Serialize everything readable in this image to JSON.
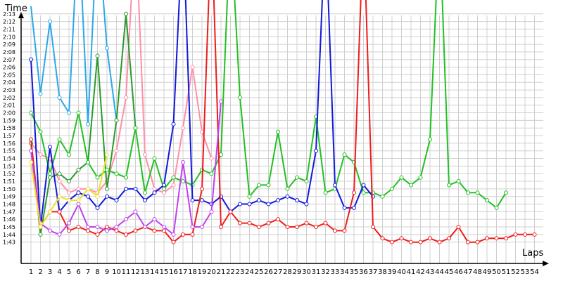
{
  "chart_data": {
    "type": "line",
    "ylabel": "Time",
    "xlabel": "Laps",
    "grid": true,
    "legend": "none",
    "xlim": [
      1,
      54
    ],
    "ylim": [
      102,
      135
    ],
    "y_tick_labels": [
      "1:43",
      "1:44",
      "1:45",
      "1:46",
      "1:47",
      "1:48",
      "1:49",
      "1:50",
      "1:51",
      "1:52",
      "1:53",
      "1:54",
      "1:55",
      "1:56",
      "1:57",
      "1:58",
      "1:59",
      "2:00",
      "2:01",
      "2:02",
      "2:03",
      "2:04",
      "2:05",
      "2:06",
      "2:07",
      "2:08",
      "2:09",
      "2:10",
      "2:11",
      "2:12",
      "2:13"
    ],
    "x_tick_labels": [
      "1",
      "2",
      "3",
      "4",
      "5",
      "6",
      "7",
      "8",
      "9",
      "10",
      "11",
      "12",
      "13",
      "14",
      "15",
      "16",
      "17",
      "18",
      "19",
      "20",
      "21",
      "22",
      "23",
      "24",
      "25",
      "26",
      "27",
      "28",
      "29",
      "30",
      "31",
      "32",
      "33",
      "34",
      "35",
      "36",
      "37",
      "38",
      "39",
      "40",
      "41",
      "42",
      "43",
      "44",
      "45",
      "46",
      "47",
      "48",
      "49",
      "50",
      "51",
      "52",
      "53",
      "54"
    ],
    "series": [
      {
        "color": "#ff8fa8",
        "values": [
          {
            "x": 1,
            "y": 116
          },
          {
            "x": 2,
            "y": 114.5
          },
          {
            "x": 3,
            "y": 114
          },
          {
            "x": 4,
            "y": 111
          },
          {
            "x": 5,
            "y": 109.5
          },
          {
            "x": 6,
            "y": 110
          },
          {
            "x": 7,
            "y": 110
          },
          {
            "x": 8,
            "y": 109.5
          },
          {
            "x": 9,
            "y": 111
          },
          {
            "x": 10,
            "y": 115
          },
          {
            "x": 11,
            "y": 122
          },
          {
            "x": 12,
            "y": 145
          },
          {
            "x": 13,
            "y": 114.5
          },
          {
            "x": 14,
            "y": 110
          },
          {
            "x": 15,
            "y": 109.5
          },
          {
            "x": 16,
            "y": 110.5
          },
          {
            "x": 17,
            "y": 118
          },
          {
            "x": 18,
            "y": 126
          },
          {
            "x": 19,
            "y": 117.5
          },
          {
            "x": 20,
            "y": 114
          }
        ]
      },
      {
        "color": "#2aa8e8",
        "values": [
          {
            "x": 1,
            "y": 134
          },
          {
            "x": 2,
            "y": 122.5
          },
          {
            "x": 3,
            "y": 132
          },
          {
            "x": 4,
            "y": 122
          },
          {
            "x": 5,
            "y": 120
          },
          {
            "x": 6,
            "y": 145
          },
          {
            "x": 7,
            "y": 118.5
          },
          {
            "x": 8,
            "y": 145
          },
          {
            "x": 9,
            "y": 128.5
          },
          {
            "x": 10,
            "y": 119
          }
        ]
      },
      {
        "color": "#2a9a2a",
        "values": [
          {
            "x": 1,
            "y": 116
          },
          {
            "x": 2,
            "y": 104
          },
          {
            "x": 3,
            "y": 111.5
          },
          {
            "x": 4,
            "y": 112
          },
          {
            "x": 5,
            "y": 111
          },
          {
            "x": 6,
            "y": 112.5
          },
          {
            "x": 7,
            "y": 113.5
          },
          {
            "x": 8,
            "y": 127.5
          },
          {
            "x": 9,
            "y": 110
          },
          {
            "x": 10,
            "y": 119
          },
          {
            "x": 11,
            "y": 133
          },
          {
            "x": 12,
            "y": 118
          }
        ]
      },
      {
        "color": "#22c022",
        "values": [
          {
            "x": 1,
            "y": 120
          },
          {
            "x": 2,
            "y": 117.5
          },
          {
            "x": 3,
            "y": 112
          },
          {
            "x": 4,
            "y": 116.5
          },
          {
            "x": 5,
            "y": 114.5
          },
          {
            "x": 6,
            "y": 120
          },
          {
            "x": 7,
            "y": 113.5
          },
          {
            "x": 8,
            "y": 111.5
          },
          {
            "x": 9,
            "y": 112.5
          },
          {
            "x": 10,
            "y": 112
          },
          {
            "x": 11,
            "y": 111.5
          },
          {
            "x": 12,
            "y": 118
          },
          {
            "x": 13,
            "y": 109.5
          },
          {
            "x": 14,
            "y": 114
          },
          {
            "x": 15,
            "y": 110
          },
          {
            "x": 16,
            "y": 111.5
          },
          {
            "x": 17,
            "y": 111
          },
          {
            "x": 18,
            "y": 110.5
          },
          {
            "x": 19,
            "y": 112.5
          },
          {
            "x": 20,
            "y": 112
          },
          {
            "x": 21,
            "y": 114.5
          },
          {
            "x": 22,
            "y": 145
          },
          {
            "x": 23,
            "y": 122
          },
          {
            "x": 24,
            "y": 109
          },
          {
            "x": 25,
            "y": 110.5
          },
          {
            "x": 26,
            "y": 110.5
          },
          {
            "x": 27,
            "y": 117.5
          },
          {
            "x": 28,
            "y": 110
          },
          {
            "x": 29,
            "y": 111.5
          },
          {
            "x": 30,
            "y": 111
          },
          {
            "x": 31,
            "y": 119.5
          },
          {
            "x": 32,
            "y": 109.5
          },
          {
            "x": 33,
            "y": 110
          },
          {
            "x": 34,
            "y": 114.5
          },
          {
            "x": 35,
            "y": 113.5
          },
          {
            "x": 36,
            "y": 109.5
          },
          {
            "x": 37,
            "y": 109.5
          },
          {
            "x": 38,
            "y": 109
          },
          {
            "x": 39,
            "y": 110
          },
          {
            "x": 40,
            "y": 111.5
          },
          {
            "x": 41,
            "y": 110.5
          },
          {
            "x": 42,
            "y": 111.5
          },
          {
            "x": 43,
            "y": 116.5
          },
          {
            "x": 44,
            "y": 145
          },
          {
            "x": 45,
            "y": 110.5
          },
          {
            "x": 46,
            "y": 111
          },
          {
            "x": 47,
            "y": 109.5
          },
          {
            "x": 48,
            "y": 109.5
          },
          {
            "x": 49,
            "y": 108.5
          },
          {
            "x": 50,
            "y": 107.5
          },
          {
            "x": 51,
            "y": 109.5
          }
        ]
      },
      {
        "color": "#1018d8",
        "values": [
          {
            "x": 1,
            "y": 127
          },
          {
            "x": 2,
            "y": 105
          },
          {
            "x": 3,
            "y": 115.5
          },
          {
            "x": 4,
            "y": 107
          },
          {
            "x": 5,
            "y": 108.5
          },
          {
            "x": 6,
            "y": 109.5
          },
          {
            "x": 7,
            "y": 109
          },
          {
            "x": 8,
            "y": 107.5
          },
          {
            "x": 9,
            "y": 109
          },
          {
            "x": 10,
            "y": 108.5
          },
          {
            "x": 11,
            "y": 110
          },
          {
            "x": 12,
            "y": 110
          },
          {
            "x": 13,
            "y": 108.5
          },
          {
            "x": 14,
            "y": 109.5
          },
          {
            "x": 15,
            "y": 110.5
          },
          {
            "x": 16,
            "y": 118.5
          },
          {
            "x": 17,
            "y": 145
          },
          {
            "x": 18,
            "y": 108.5
          },
          {
            "x": 19,
            "y": 108.5
          },
          {
            "x": 20,
            "y": 108
          },
          {
            "x": 21,
            "y": 109
          },
          {
            "x": 22,
            "y": 107
          },
          {
            "x": 23,
            "y": 108
          },
          {
            "x": 24,
            "y": 108
          },
          {
            "x": 25,
            "y": 108.5
          },
          {
            "x": 26,
            "y": 108
          },
          {
            "x": 27,
            "y": 108.5
          },
          {
            "x": 28,
            "y": 109
          },
          {
            "x": 29,
            "y": 108.5
          },
          {
            "x": 30,
            "y": 108
          },
          {
            "x": 31,
            "y": 115
          },
          {
            "x": 32,
            "y": 145
          },
          {
            "x": 33,
            "y": 110.5
          },
          {
            "x": 34,
            "y": 107.5
          },
          {
            "x": 35,
            "y": 107.5
          },
          {
            "x": 36,
            "y": 110.5
          },
          {
            "x": 37,
            "y": 109
          }
        ]
      },
      {
        "color": "#ee1c1c",
        "values": [
          {
            "x": 1,
            "y": 116.5
          },
          {
            "x": 2,
            "y": 105
          },
          {
            "x": 3,
            "y": 107
          },
          {
            "x": 4,
            "y": 107
          },
          {
            "x": 5,
            "y": 104.5
          },
          {
            "x": 6,
            "y": 105
          },
          {
            "x": 7,
            "y": 104.5
          },
          {
            "x": 8,
            "y": 104
          },
          {
            "x": 9,
            "y": 105
          },
          {
            "x": 10,
            "y": 104.5
          },
          {
            "x": 11,
            "y": 104
          },
          {
            "x": 12,
            "y": 104.5
          },
          {
            "x": 13,
            "y": 105
          },
          {
            "x": 14,
            "y": 104.5
          },
          {
            "x": 15,
            "y": 104.5
          },
          {
            "x": 16,
            "y": 103
          },
          {
            "x": 17,
            "y": 104
          },
          {
            "x": 18,
            "y": 104
          },
          {
            "x": 19,
            "y": 110
          },
          {
            "x": 20,
            "y": 145
          },
          {
            "x": 21,
            "y": 105
          },
          {
            "x": 22,
            "y": 107
          },
          {
            "x": 23,
            "y": 105.5
          },
          {
            "x": 24,
            "y": 105.5
          },
          {
            "x": 25,
            "y": 105
          },
          {
            "x": 26,
            "y": 105.5
          },
          {
            "x": 27,
            "y": 106
          },
          {
            "x": 28,
            "y": 105
          },
          {
            "x": 29,
            "y": 105
          },
          {
            "x": 30,
            "y": 105.5
          },
          {
            "x": 31,
            "y": 105
          },
          {
            "x": 32,
            "y": 105.5
          },
          {
            "x": 33,
            "y": 104.5
          },
          {
            "x": 34,
            "y": 104.5
          },
          {
            "x": 35,
            "y": 109.5
          },
          {
            "x": 36,
            "y": 145
          },
          {
            "x": 37,
            "y": 105
          },
          {
            "x": 38,
            "y": 103.5
          },
          {
            "x": 39,
            "y": 103
          },
          {
            "x": 40,
            "y": 103.5
          },
          {
            "x": 41,
            "y": 103
          },
          {
            "x": 42,
            "y": 103
          },
          {
            "x": 43,
            "y": 103.5
          },
          {
            "x": 44,
            "y": 103
          },
          {
            "x": 45,
            "y": 103.5
          },
          {
            "x": 46,
            "y": 105
          },
          {
            "x": 47,
            "y": 103
          },
          {
            "x": 48,
            "y": 103
          },
          {
            "x": 49,
            "y": 103.5
          },
          {
            "x": 50,
            "y": 103.5
          },
          {
            "x": 51,
            "y": 103.5
          },
          {
            "x": 52,
            "y": 104
          },
          {
            "x": 53,
            "y": 104
          },
          {
            "x": 54,
            "y": 104
          }
        ]
      },
      {
        "color": "#c040ee",
        "values": [
          {
            "x": 1,
            "y": 115
          },
          {
            "x": 2,
            "y": 105.5
          },
          {
            "x": 3,
            "y": 104.5
          },
          {
            "x": 4,
            "y": 104
          },
          {
            "x": 5,
            "y": 105.5
          },
          {
            "x": 6,
            "y": 108
          },
          {
            "x": 7,
            "y": 105
          },
          {
            "x": 8,
            "y": 105
          },
          {
            "x": 9,
            "y": 104.5
          },
          {
            "x": 10,
            "y": 105
          },
          {
            "x": 11,
            "y": 106
          },
          {
            "x": 12,
            "y": 107
          },
          {
            "x": 13,
            "y": 105
          },
          {
            "x": 14,
            "y": 106
          },
          {
            "x": 15,
            "y": 105
          },
          {
            "x": 16,
            "y": 104
          },
          {
            "x": 17,
            "y": 113.5
          },
          {
            "x": 18,
            "y": 105
          },
          {
            "x": 19,
            "y": 105
          },
          {
            "x": 20,
            "y": 107
          },
          {
            "x": 21,
            "y": 121.5
          }
        ]
      },
      {
        "color": "#f0e028",
        "values": [
          {
            "x": 1,
            "y": 113.5
          },
          {
            "x": 2,
            "y": 105
          },
          {
            "x": 3,
            "y": 107
          },
          {
            "x": 4,
            "y": 109
          },
          {
            "x": 5,
            "y": 108.5
          },
          {
            "x": 6,
            "y": 108.5
          },
          {
            "x": 7,
            "y": 110
          },
          {
            "x": 8,
            "y": 109
          },
          {
            "x": 9,
            "y": 114.5
          }
        ]
      }
    ]
  }
}
